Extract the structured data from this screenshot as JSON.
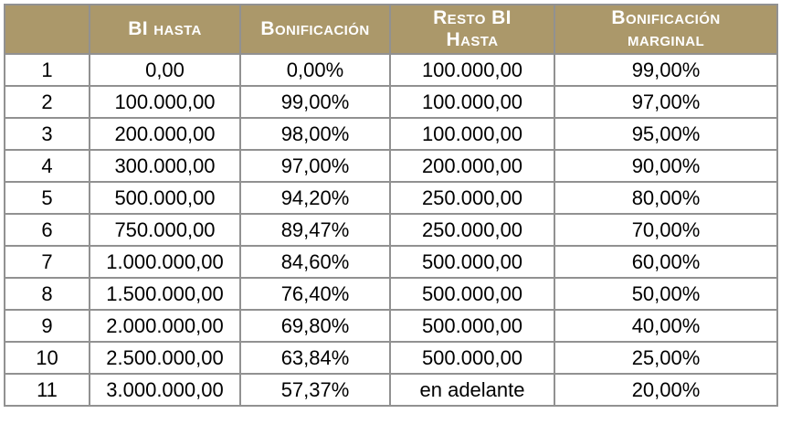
{
  "chart_data": {
    "type": "table",
    "title": "",
    "columns": [
      {
        "key": "index",
        "label": ""
      },
      {
        "key": "bi_hasta",
        "label": "BI hasta"
      },
      {
        "key": "bonificacion",
        "label": "Bonificación"
      },
      {
        "key": "resto_bi_hasta",
        "label": "Resto BI\nHasta"
      },
      {
        "key": "bonificacion_marginal",
        "label": "Bonificación\nmarginal"
      }
    ],
    "rows": [
      [
        "1",
        "0,00",
        "0,00%",
        "100.000,00",
        "99,00%"
      ],
      [
        "2",
        "100.000,00",
        "99,00%",
        "100.000,00",
        "97,00%"
      ],
      [
        "3",
        "200.000,00",
        "98,00%",
        "100.000,00",
        "95,00%"
      ],
      [
        "4",
        "300.000,00",
        "97,00%",
        "200.000,00",
        "90,00%"
      ],
      [
        "5",
        "500.000,00",
        "94,20%",
        "250.000,00",
        "80,00%"
      ],
      [
        "6",
        "750.000,00",
        "89,47%",
        "250.000,00",
        "70,00%"
      ],
      [
        "7",
        "1.000.000,00",
        "84,60%",
        "500.000,00",
        "60,00%"
      ],
      [
        "8",
        "1.500.000,00",
        "76,40%",
        "500.000,00",
        "50,00%"
      ],
      [
        "9",
        "2.000.000,00",
        "69,80%",
        "500.000,00",
        "40,00%"
      ],
      [
        "10",
        "2.500.000,00",
        "63,84%",
        "500.000,00",
        "25,00%"
      ],
      [
        "11",
        "3.000.000,00",
        "57,37%",
        "en adelante",
        "20,00%"
      ]
    ]
  },
  "colors": {
    "header_bg": "#ab986a",
    "header_text": "#ffffff",
    "grid_line": "#919191",
    "outer_border": "#7d7d7d",
    "body_text": "#000000",
    "body_bg": "#ffffff"
  }
}
